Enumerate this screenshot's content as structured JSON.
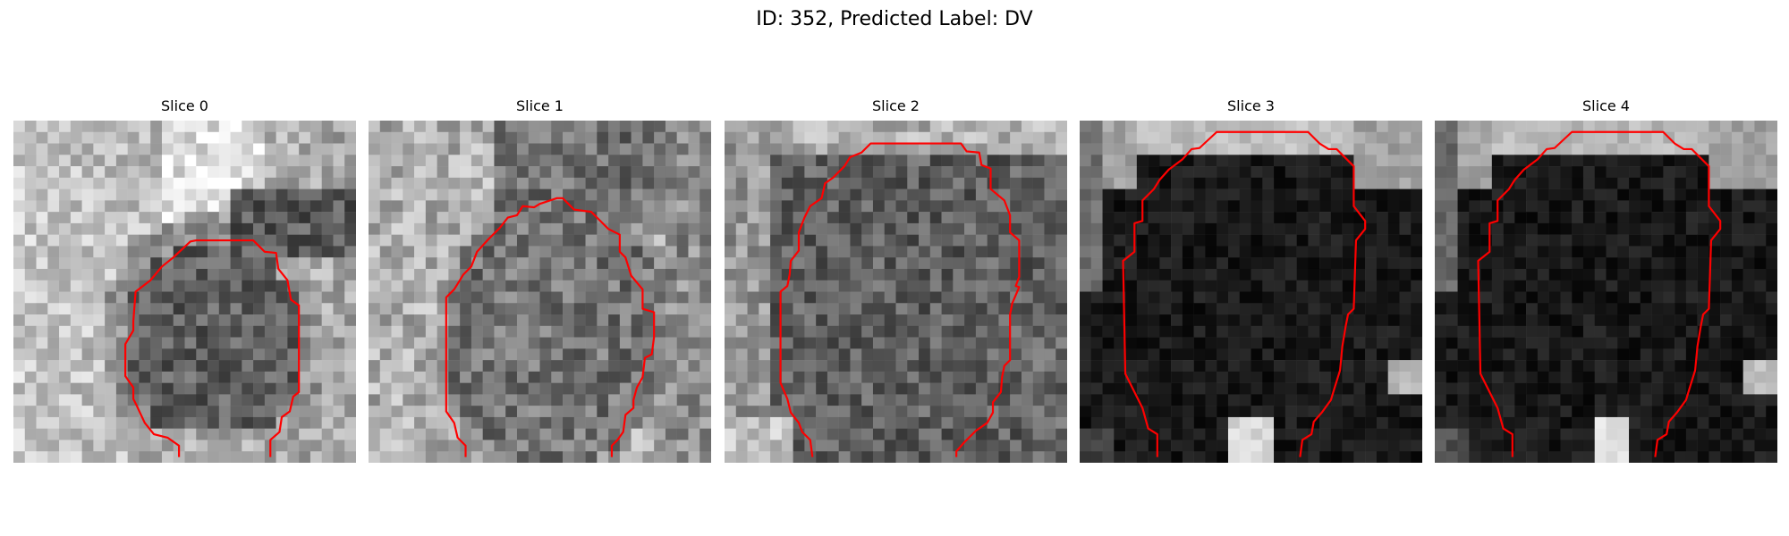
{
  "figure": {
    "title": "ID: 352, Predicted Label: DV",
    "panels": [
      {
        "title": "Slice 0"
      },
      {
        "title": "Slice 1"
      },
      {
        "title": "Slice 2"
      },
      {
        "title": "Slice 3"
      },
      {
        "title": "Slice 4"
      }
    ]
  },
  "colors": {
    "contour": "#ff0000",
    "text": "#000000",
    "background": "#ffffff"
  }
}
